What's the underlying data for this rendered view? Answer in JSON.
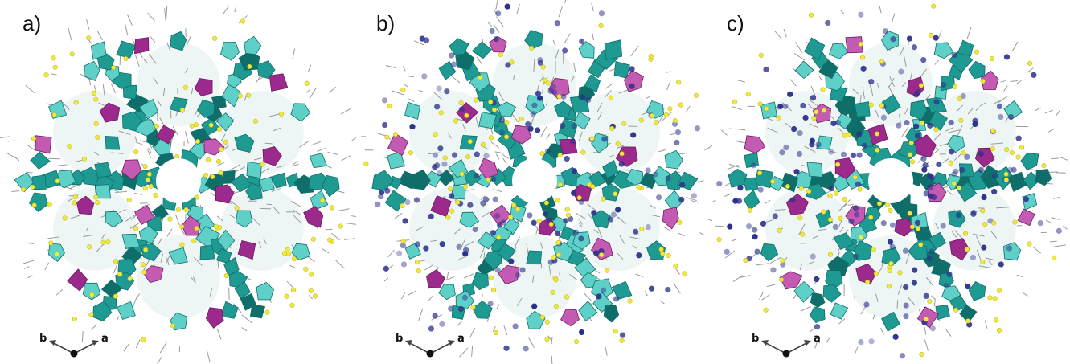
{
  "figure": {
    "panels": [
      {
        "label": "a)",
        "axis_left": "b",
        "axis_right": "a",
        "guest_atoms": false
      },
      {
        "label": "b)",
        "axis_left": "b",
        "axis_right": "a",
        "guest_atoms": true
      },
      {
        "label": "c)",
        "axis_left": "b",
        "axis_right": "a",
        "guest_atoms": true
      }
    ],
    "colors": {
      "teal_polyhedra": "#1f9a93",
      "teal_light": "#5fd0c8",
      "teal_dark": "#0f6e69",
      "magenta_octahedra": "#9b2a8c",
      "magenta_light": "#c45bb3",
      "sulfur_yellow": "#f0e83a",
      "guest_navy": "#2a2f8a",
      "bond_grey": "#9a9a9a",
      "axis_arrow": "#444444"
    }
  }
}
